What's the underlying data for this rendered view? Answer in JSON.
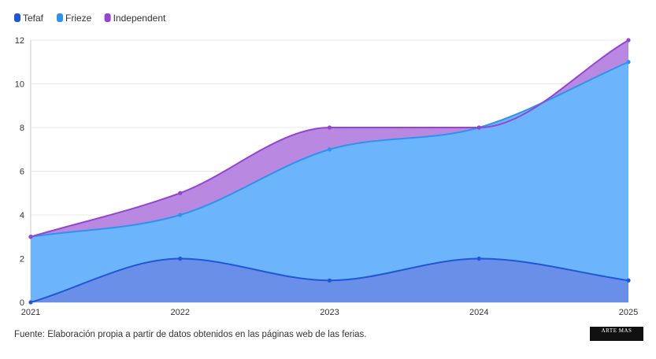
{
  "chart_data": {
    "type": "area",
    "stacked": true,
    "x": [
      "2021",
      "2022",
      "2023",
      "2024",
      "2025"
    ],
    "series": [
      {
        "name": "Tefaf",
        "values": [
          0,
          2,
          1,
          2,
          1
        ],
        "color": "#1f57d6",
        "fill": "#6a8fe8"
      },
      {
        "name": "Frieze",
        "values": [
          3,
          4,
          7,
          8,
          11
        ],
        "color": "#2e93ee",
        "fill": "#6cb4fb"
      },
      {
        "name": "Independent",
        "values": [
          3,
          5,
          8,
          8,
          12
        ],
        "color": "#9445d2",
        "fill": "#b989e2"
      }
    ],
    "ylim": [
      0,
      12
    ],
    "yticks": [
      "0",
      "2",
      "4",
      "6",
      "8",
      "10",
      "12"
    ],
    "grid": true,
    "legend_position": "top-left"
  },
  "footer": {
    "source": "Fuente: Elaboración propia a partir de datos obtenidos en las páginas web de las ferias.",
    "logo_text": "ARTE MAS"
  }
}
